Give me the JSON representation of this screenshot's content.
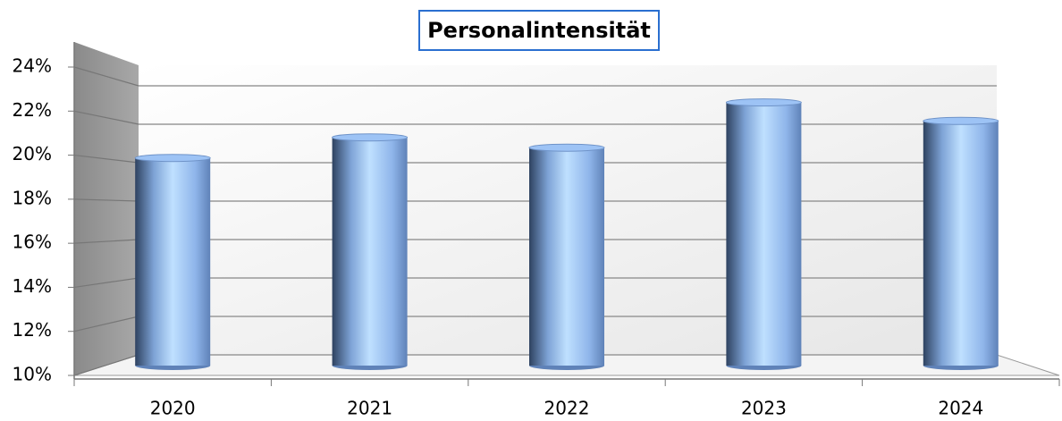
{
  "chart_data": {
    "type": "bar",
    "title": "Personalintensität",
    "categories": [
      "2020",
      "2021",
      "2022",
      "2023",
      "2024"
    ],
    "values": [
      20.1,
      21.1,
      20.6,
      22.8,
      21.9
    ],
    "color": "#9dc3f5",
    "ylim": [
      10,
      24
    ],
    "yticks": [
      {
        "value": 10,
        "label": "10%"
      },
      {
        "value": 12,
        "label": "12%"
      },
      {
        "value": 14,
        "label": "14%"
      },
      {
        "value": 16,
        "label": "16%"
      },
      {
        "value": 18,
        "label": "18%"
      },
      {
        "value": 20,
        "label": "20%"
      },
      {
        "value": 22,
        "label": "22%"
      },
      {
        "value": 24,
        "label": "24%"
      }
    ],
    "grid": true
  }
}
